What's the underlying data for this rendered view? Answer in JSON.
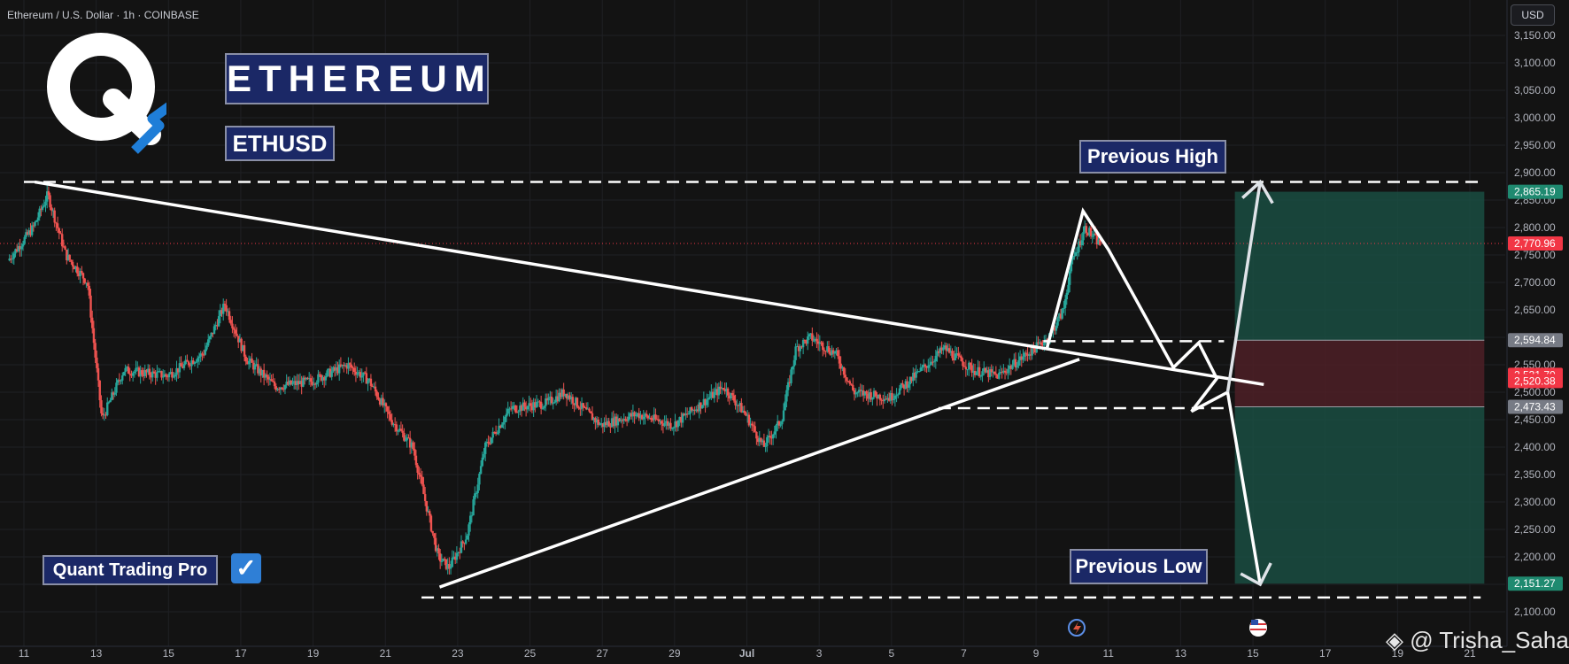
{
  "header": {
    "symbol_line": "Ethereum / U.S. Dollar · 1h · COINBASE",
    "currency_button": "USD"
  },
  "brand": {
    "title": "ETHEREUM",
    "ticker": "ETHUSD",
    "pro_label": "Quant Trading Pro",
    "watermark": "@ Trisha_Saha"
  },
  "annotations": {
    "previous_high": "Previous High",
    "previous_low": "Previous Low"
  },
  "colors": {
    "background": "#131313",
    "up": "#26a69a",
    "down": "#ef5350",
    "tp_zone": "#1a4d42",
    "sl_zone": "#4a1f26",
    "tag_green": "#1f8a70",
    "tag_red": "#f23645",
    "tag_gray": "#777b85",
    "label_box": "#1b2866"
  },
  "icons": {
    "logo": "q-arrow-logo-icon",
    "check": "checkmark-icon",
    "watermark": "binance-logo-icon"
  },
  "chart_data": {
    "type": "candlestick",
    "ylim": [
      2080,
      3190
    ],
    "y_ticks": [
      "3,150.00",
      "3,100.00",
      "3,050.00",
      "3,000.00",
      "2,950.00",
      "2,900.00",
      "2,850.00",
      "2,800.00",
      "2,750.00",
      "2,700.00",
      "2,650.00",
      "2,600.00",
      "2,550.00",
      "2,500.00",
      "2,450.00",
      "2,400.00",
      "2,350.00",
      "2,300.00",
      "2,250.00",
      "2,200.00",
      "2,150.00",
      "2,100.00"
    ],
    "x_ticks": [
      "11",
      "13",
      "15",
      "17",
      "19",
      "21",
      "23",
      "25",
      "27",
      "29",
      "Jul",
      "3",
      "5",
      "7",
      "9",
      "11",
      "13",
      "15",
      "17",
      "19",
      "21"
    ],
    "x_day_index": [
      11,
      13,
      15,
      17,
      19,
      21,
      23,
      25,
      27,
      29,
      31,
      33,
      35,
      37,
      39,
      41,
      43,
      45,
      47,
      49,
      51
    ],
    "price_tags": [
      {
        "value": "2,865.19",
        "color": "#1f8a70"
      },
      {
        "value": "2,770.96",
        "color": "#f23645"
      },
      {
        "value": "2,594.84",
        "color": "#777b85"
      },
      {
        "value": "2,531.70",
        "color": "#f23645"
      },
      {
        "value": "2,520.38",
        "color": "#f23645"
      },
      {
        "value": "2,473.43",
        "color": "#777b85"
      },
      {
        "value": "2,151.27",
        "color": "#1f8a70"
      }
    ],
    "current_price": 2770.96,
    "price_path": [
      [
        10.6,
        2740
      ],
      [
        11.3,
        2800
      ],
      [
        11.7,
        2860
      ],
      [
        12.2,
        2750
      ],
      [
        12.8,
        2700
      ],
      [
        13.2,
        2450
      ],
      [
        13.8,
        2540
      ],
      [
        15,
        2530
      ],
      [
        16,
        2570
      ],
      [
        16.6,
        2660
      ],
      [
        17.2,
        2560
      ],
      [
        18,
        2510
      ],
      [
        19,
        2520
      ],
      [
        20,
        2550
      ],
      [
        20.6,
        2520
      ],
      [
        21.2,
        2450
      ],
      [
        21.8,
        2400
      ],
      [
        22.5,
        2200
      ],
      [
        22.8,
        2180
      ],
      [
        23.3,
        2240
      ],
      [
        23.8,
        2400
      ],
      [
        24.5,
        2470
      ],
      [
        25.5,
        2480
      ],
      [
        26,
        2500
      ],
      [
        27,
        2440
      ],
      [
        28,
        2460
      ],
      [
        29,
        2440
      ],
      [
        29.6,
        2470
      ],
      [
        30.4,
        2510
      ],
      [
        31,
        2460
      ],
      [
        31.5,
        2400
      ],
      [
        32,
        2450
      ],
      [
        32.4,
        2580
      ],
      [
        32.8,
        2600
      ],
      [
        33.5,
        2570
      ],
      [
        34,
        2500
      ],
      [
        35,
        2490
      ],
      [
        35.7,
        2530
      ],
      [
        36.5,
        2580
      ],
      [
        37.3,
        2540
      ],
      [
        38,
        2530
      ],
      [
        38.6,
        2560
      ],
      [
        39.4,
        2600
      ],
      [
        39.8,
        2650
      ],
      [
        40,
        2730
      ],
      [
        40.4,
        2800
      ],
      [
        40.8,
        2770
      ]
    ],
    "projection_path": [
      [
        39.3,
        2580
      ],
      [
        40.3,
        2830
      ],
      [
        41,
        2760
      ],
      [
        42.8,
        2545
      ],
      [
        43.5,
        2590
      ],
      [
        44,
        2525
      ],
      [
        43.3,
        2465
      ],
      [
        44.3,
        2500
      ],
      [
        45.2,
        2150
      ]
    ],
    "arrow_up": [
      [
        44.3,
        2500
      ],
      [
        45.2,
        2883
      ]
    ],
    "trendline_resistance": [
      [
        11.3,
        2883
      ],
      [
        45.3,
        2514
      ]
    ],
    "trendline_support": [
      [
        22.5,
        2145
      ],
      [
        40.2,
        2560
      ]
    ],
    "hlines": [
      {
        "y": 2883,
        "x0": 11,
        "x1": 51.3
      },
      {
        "y": 2593,
        "x0": 39.2,
        "x1": 44.2
      },
      {
        "y": 2471,
        "x0": 36.3,
        "x1": 44.2
      },
      {
        "y": 2126,
        "x0": 22,
        "x1": 51.3
      }
    ],
    "position": {
      "x0": 44.5,
      "x1": 51.4,
      "entry": 2531.7,
      "stop": 2594.84,
      "take_profit_high": 2865.19,
      "take_profit_low": 2151.27,
      "alt_entry": 2473.43
    }
  }
}
